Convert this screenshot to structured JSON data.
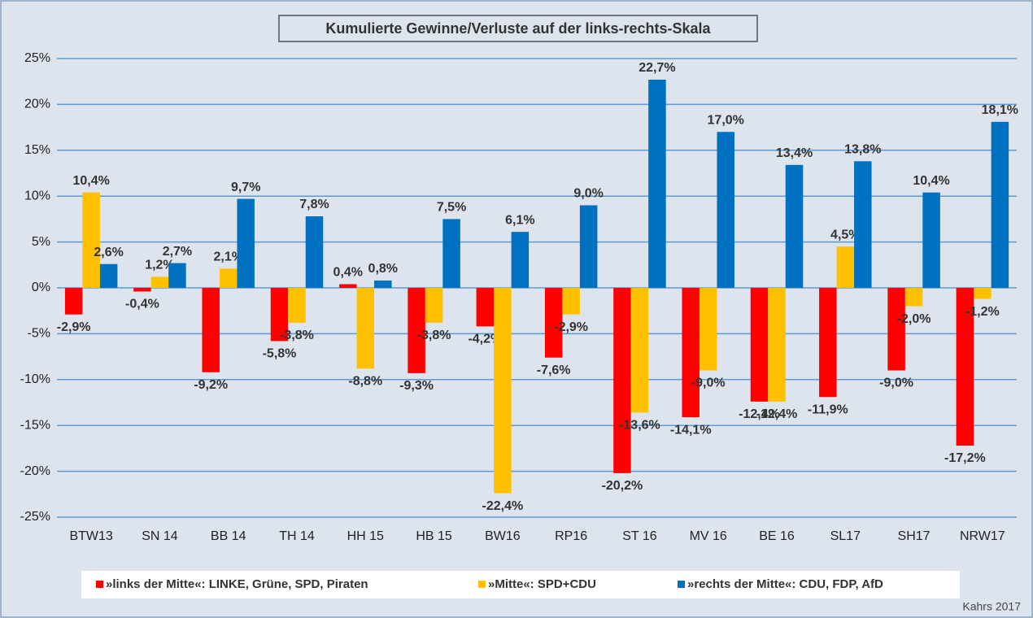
{
  "chart_data": {
    "type": "bar",
    "title": "Kumulierte Gewinne/Verluste auf der links-rechts-Skala",
    "categories": [
      "BTW13",
      "SN 14",
      "BB 14",
      "TH 14",
      "HH 15",
      "HB 15",
      "BW16",
      "RP16",
      "ST 16",
      "MV 16",
      "BE 16",
      "SL17",
      "SH17",
      "NRW17"
    ],
    "series": [
      {
        "name": "»links der Mitte«: LINKE, Grüne, SPD, Piraten",
        "color": "#ff0000",
        "values": [
          -2.9,
          -0.4,
          -9.2,
          -5.8,
          0.4,
          -9.3,
          -4.2,
          -7.6,
          -20.2,
          -14.1,
          -12.4,
          -11.9,
          -9.0,
          -17.2
        ],
        "value_labels": [
          "-2,9%",
          "-0,4%",
          "-9,2%",
          "-5,8%",
          "0,4%",
          "-9,3%",
          "-4,2%",
          "-7,6%",
          "-20,2%",
          "-14,1%",
          "-12,4%",
          "-11,9%",
          "-9,0%",
          "-17,2%"
        ]
      },
      {
        "name": "»Mitte«: SPD+CDU",
        "color": "#ffc000",
        "values": [
          10.4,
          1.2,
          2.1,
          -3.8,
          -8.8,
          -3.8,
          -22.4,
          -2.9,
          -13.6,
          -9.0,
          -12.4,
          4.5,
          -2.0,
          -1.2
        ],
        "value_labels": [
          "10,4%",
          "1,2%",
          "2,1%",
          "-3,8%",
          "-8,8%",
          "-3,8%",
          "-22,4%",
          "-2,9%",
          "-13,6%",
          "-9,0%",
          "-12,4%",
          "4,5%",
          "-2,0%",
          "-1,2%"
        ]
      },
      {
        "name": "»rechts der Mitte«: CDU, FDP, AfD",
        "color": "#0070c0",
        "values": [
          2.6,
          2.7,
          9.7,
          7.8,
          0.8,
          7.5,
          6.1,
          9.0,
          22.7,
          17.0,
          13.4,
          13.8,
          10.4,
          18.1
        ],
        "value_labels": [
          "2,6%",
          "2,7%",
          "9,7%",
          "7,8%",
          "0,8%",
          "7,5%",
          "6,1%",
          "9,0%",
          "22,7%",
          "17,0%",
          "13,4%",
          "13,8%",
          "10,4%",
          "18,1%"
        ]
      }
    ],
    "ylim": [
      -25,
      25
    ],
    "yticks": [
      {
        "value": -25,
        "label": "-25%"
      },
      {
        "value": -20,
        "label": "-20%"
      },
      {
        "value": -15,
        "label": "-15%"
      },
      {
        "value": -10,
        "label": "-10%"
      },
      {
        "value": -5,
        "label": "-5%"
      },
      {
        "value": 0,
        "label": "0%"
      },
      {
        "value": 5,
        "label": "5%"
      },
      {
        "value": 10,
        "label": "10%"
      },
      {
        "value": 15,
        "label": "15%"
      },
      {
        "value": 20,
        "label": "20%"
      },
      {
        "value": 25,
        "label": "25%"
      }
    ],
    "grid": true,
    "legend": "bottom",
    "source": "Kahrs 2017"
  }
}
